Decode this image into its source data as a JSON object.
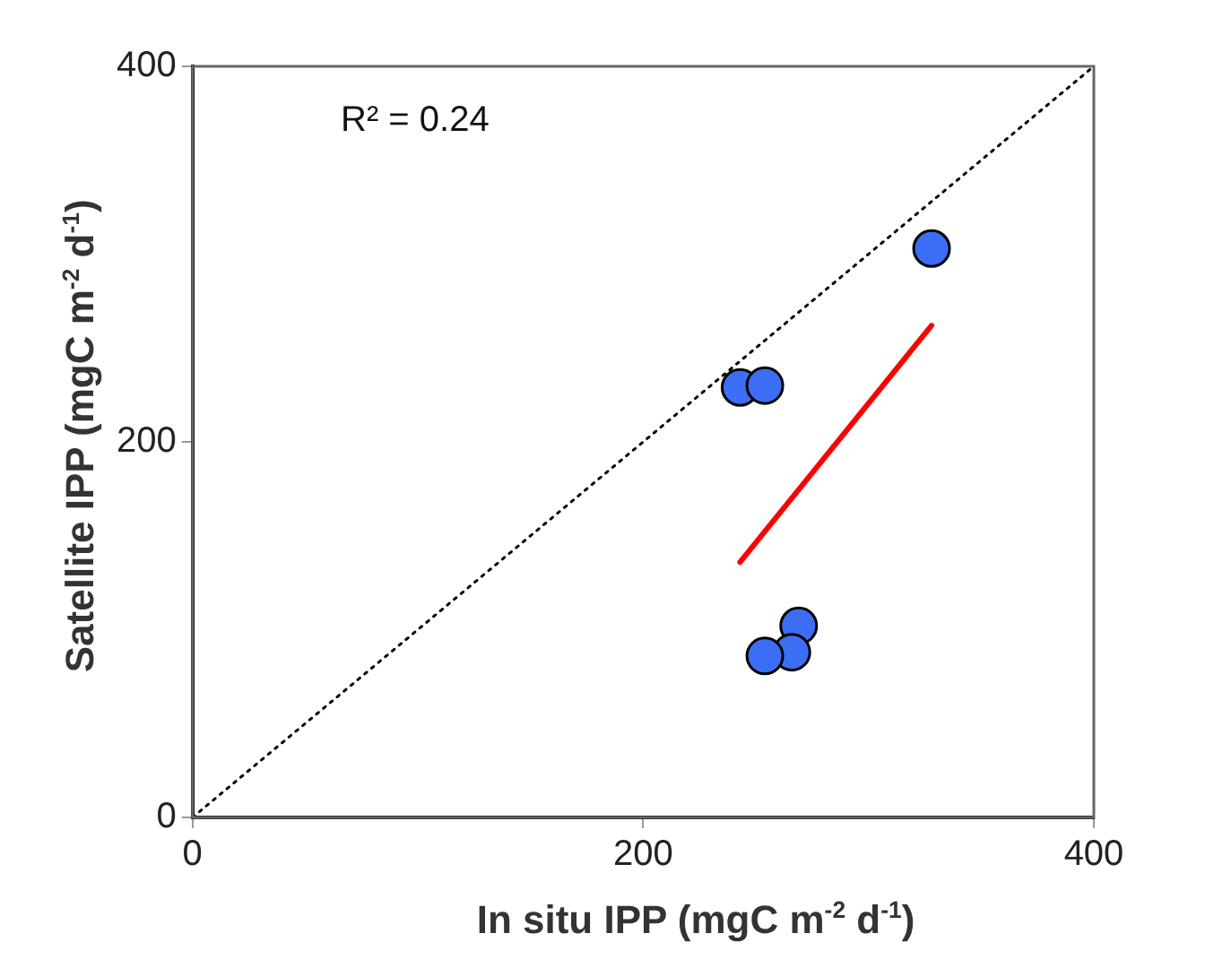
{
  "chart_data": {
    "type": "scatter",
    "xlabel": "In situ IPP (mgC m$^{-2}$ d$^{-1}$)",
    "ylabel": "Satellite IPP (mgC m$^{-2}$ d$^{-1}$)",
    "xlim": [
      0,
      400
    ],
    "ylim": [
      0,
      400
    ],
    "xticks": [
      0,
      200,
      400
    ],
    "yticks": [
      0,
      200,
      400
    ],
    "grid": false,
    "marker": "circle",
    "annotations": [
      "R² = 0.24"
    ],
    "series": [
      {
        "type": "line",
        "x": [
          0,
          400
        ],
        "values": [
          0,
          400
        ],
        "color": "#000000",
        "line_style": "dotted",
        "marker": "none"
      },
      {
        "type": "line",
        "x": [
          243,
          328
        ],
        "values": [
          136,
          262
        ],
        "color": "#ff0000",
        "line_style": "solid",
        "marker": "none"
      },
      {
        "x": [
          328,
          243,
          254,
          269,
          266,
          254
        ],
        "values": [
          303,
          229,
          230,
          102,
          88,
          86
        ],
        "color": "#3b6ef5"
      }
    ]
  }
}
